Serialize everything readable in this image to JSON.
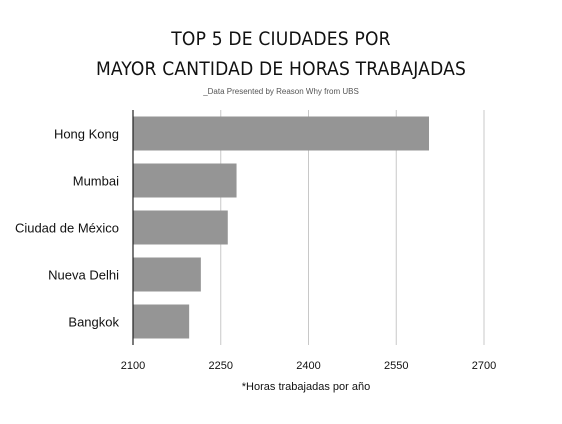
{
  "chart_data": {
    "type": "bar",
    "orientation": "horizontal",
    "title_lines": [
      "TOP 5 DE CIUDADES POR",
      "MAYOR CANTIDAD DE HORAS TRABAJADAS"
    ],
    "subtitle": "_Data Presented by Reason Why from UBS",
    "footnote": "*Horas trabajadas por año",
    "categories": [
      "Hong Kong",
      "Mumbai",
      "Ciudad de México",
      "Nueva Delhi",
      "Bangkok"
    ],
    "values": [
      2606,
      2277,
      2262,
      2216,
      2196
    ],
    "xlim": [
      2100,
      2700
    ],
    "xticks": [
      "2100",
      "2250",
      "2400",
      "2550",
      "2700"
    ],
    "grid": true,
    "bar_color": "#959595",
    "grid_color": "#c8c8c8"
  }
}
